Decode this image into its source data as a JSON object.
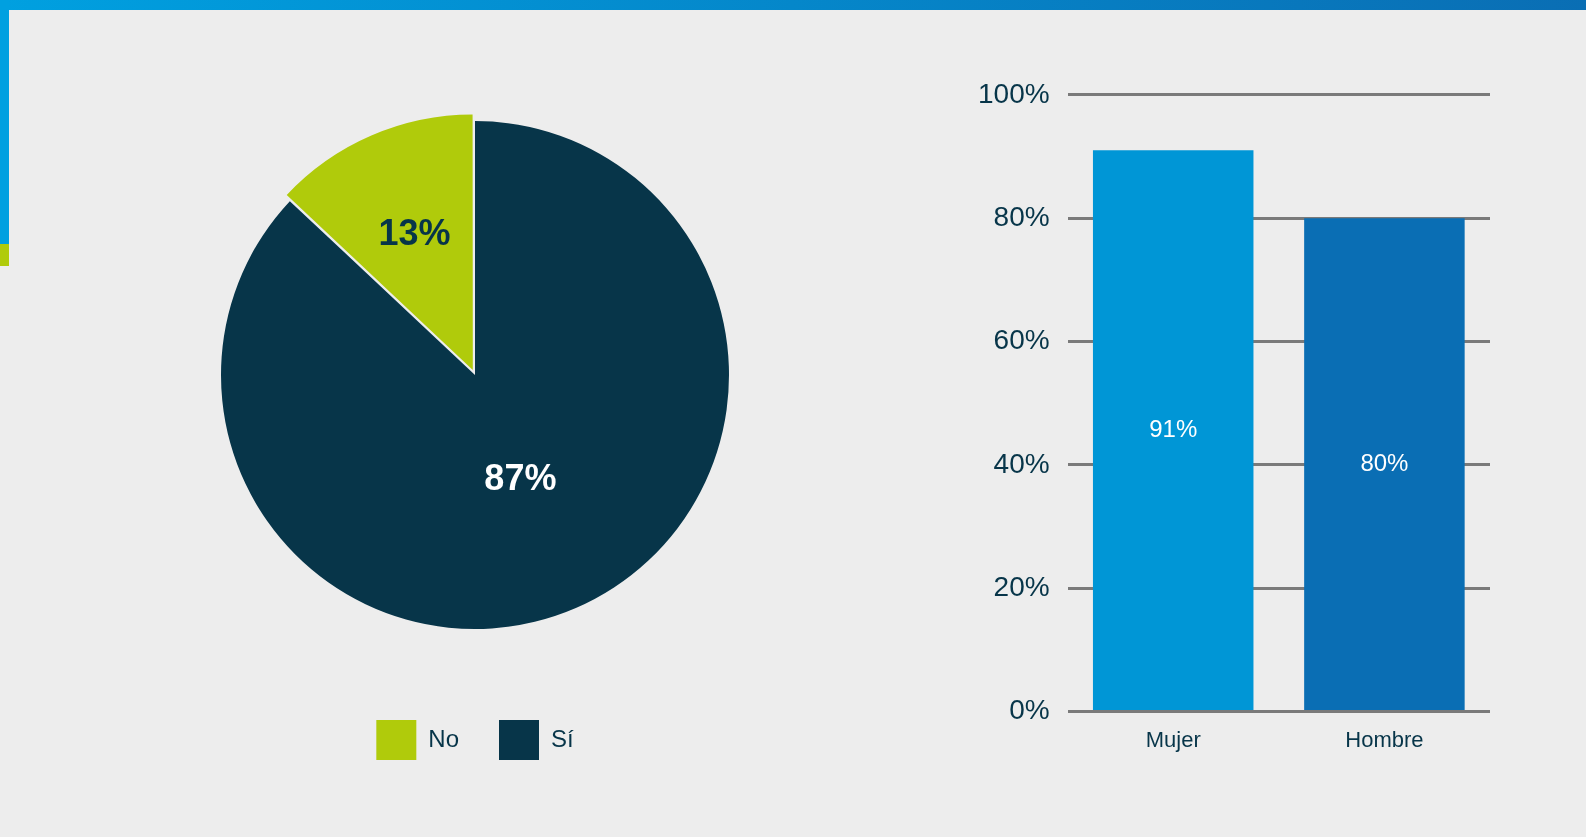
{
  "chart_data": [
    {
      "type": "pie",
      "categories": [
        "No",
        "Sí"
      ],
      "values": [
        13,
        87
      ],
      "colors": [
        "#b0cb0b",
        "#073549"
      ],
      "value_labels": [
        "13%",
        "87%"
      ],
      "legend": "bottom"
    },
    {
      "type": "bar",
      "categories": [
        "Mujer",
        "Hombre"
      ],
      "values": [
        91,
        80
      ],
      "colors": [
        "#0096d6",
        "#0a6eb4"
      ],
      "value_labels": [
        "91%",
        "80%"
      ],
      "ylim": [
        0,
        100
      ],
      "yticks": [
        {
          "value": 0,
          "label": "0%"
        },
        {
          "value": 20,
          "label": "20%"
        },
        {
          "value": 40,
          "label": "40%"
        },
        {
          "value": 60,
          "label": "60%"
        },
        {
          "value": 80,
          "label": "80%"
        },
        {
          "value": 100,
          "label": "100%"
        }
      ],
      "grid": "y",
      "legend": false
    }
  ]
}
